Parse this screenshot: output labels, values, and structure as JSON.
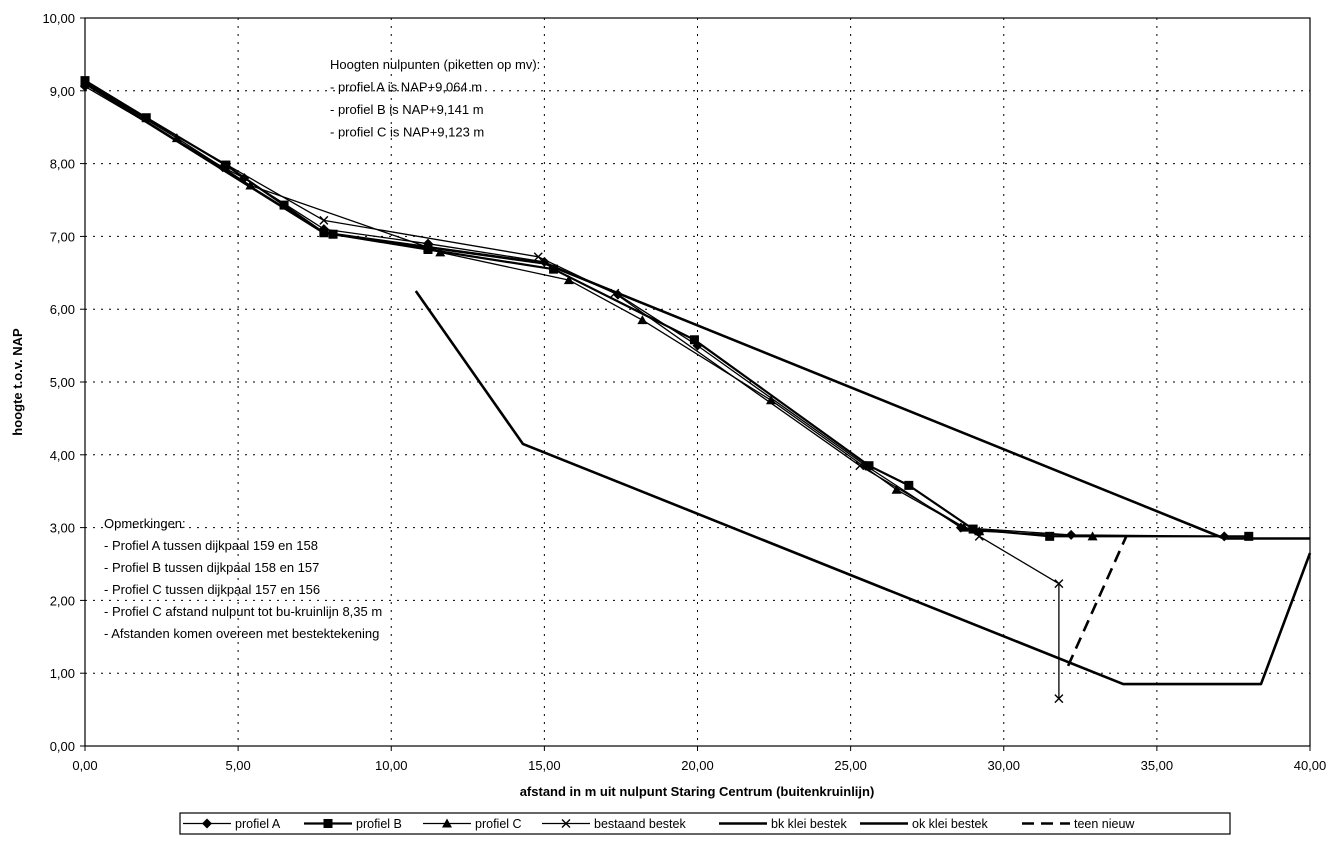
{
  "chart_data": {
    "type": "line",
    "title": "",
    "xlabel": "afstand in m uit nulpunt Staring Centrum (buitenkruinlijn)",
    "ylabel": "hoogte t.o.v. NAP",
    "xlim": [
      0,
      40
    ],
    "ylim": [
      0,
      10
    ],
    "x_ticks": [
      "0,00",
      "5,00",
      "10,00",
      "15,00",
      "20,00",
      "25,00",
      "30,00",
      "35,00",
      "40,00"
    ],
    "y_ticks": [
      "0,00",
      "1,00",
      "2,00",
      "3,00",
      "4,00",
      "5,00",
      "6,00",
      "7,00",
      "8,00",
      "9,00",
      "10,00"
    ],
    "grid": "dotted",
    "legend_position": "bottom",
    "series": [
      {
        "name": "profiel A",
        "marker": "diamond",
        "style": "solid-thin",
        "points": [
          [
            0,
            9.06
          ],
          [
            4.5,
            7.95
          ],
          [
            5.2,
            7.8
          ],
          [
            7.8,
            7.1
          ],
          [
            11.2,
            6.9
          ],
          [
            15.0,
            6.65
          ],
          [
            17.4,
            6.2
          ],
          [
            20.0,
            5.5
          ],
          [
            25.5,
            3.85
          ],
          [
            28.6,
            3.0
          ],
          [
            32.2,
            2.9
          ],
          [
            37.2,
            2.88
          ]
        ]
      },
      {
        "name": "profiel B",
        "marker": "square",
        "style": "solid",
        "points": [
          [
            0,
            9.14
          ],
          [
            2.0,
            8.63
          ],
          [
            4.6,
            7.98
          ],
          [
            6.5,
            7.43
          ],
          [
            7.8,
            7.05
          ],
          [
            8.1,
            7.03
          ],
          [
            11.2,
            6.82
          ],
          [
            15.3,
            6.55
          ],
          [
            19.9,
            5.58
          ],
          [
            25.6,
            3.85
          ],
          [
            26.9,
            3.58
          ],
          [
            29.0,
            2.98
          ],
          [
            31.5,
            2.88
          ],
          [
            38.0,
            2.88
          ]
        ]
      },
      {
        "name": "profiel C",
        "marker": "triangle",
        "style": "solid-thin",
        "points": [
          [
            0,
            9.12
          ],
          [
            3.0,
            8.35
          ],
          [
            5.4,
            7.7
          ],
          [
            11.2,
            6.85
          ],
          [
            11.6,
            6.78
          ],
          [
            15.8,
            6.4
          ],
          [
            18.2,
            5.85
          ],
          [
            22.4,
            4.75
          ],
          [
            26.5,
            3.52
          ],
          [
            28.7,
            3.0
          ],
          [
            29.2,
            2.95
          ],
          [
            32.9,
            2.88
          ]
        ]
      },
      {
        "name": "bestaand bestek",
        "marker": "x",
        "style": "solid-thin",
        "points": [
          [
            0,
            9.1
          ],
          [
            7.8,
            7.22
          ],
          [
            14.8,
            6.72
          ],
          [
            17.3,
            6.22
          ],
          [
            25.3,
            3.85
          ],
          [
            29.2,
            2.88
          ],
          [
            31.8,
            2.23
          ],
          [
            31.8,
            0.65
          ]
        ]
      },
      {
        "name": "bk klei bestek",
        "marker": "none",
        "style": "solid-thick",
        "points": [
          [
            0,
            9.1
          ],
          [
            7.8,
            7.05
          ],
          [
            15.0,
            6.63
          ],
          [
            17.4,
            6.22
          ],
          [
            37.2,
            2.85
          ],
          [
            40,
            2.85
          ]
        ]
      },
      {
        "name": "ok klei bestek",
        "marker": "none",
        "style": "solid-thick",
        "points": [
          [
            10.8,
            6.25
          ],
          [
            14.3,
            4.15
          ],
          [
            33.9,
            0.85
          ],
          [
            38.4,
            0.85
          ],
          [
            40,
            2.65
          ]
        ]
      },
      {
        "name": "teen nieuw",
        "marker": "none",
        "style": "dashed",
        "points": [
          [
            32.1,
            1.1
          ],
          [
            34.0,
            2.88
          ]
        ]
      }
    ],
    "annotations": {
      "top_note": [
        "Hoogten nulpunten (piketten op mv):",
        "- profiel A is NAP+9,064 m",
        "- profiel B is NAP+9,141 m",
        "- profiel C is NAP+9,123 m"
      ],
      "bottom_note": [
        "Opmerkingen:",
        "- Profiel A tussen dijkpaal 159 en 158",
        "- Profiel B tussen dijkpaal 158 en 157",
        "- Profiel C tussen dijkpaal 157 en 156",
        "- Profiel C afstand nulpunt tot bu-kruinlijn 8,35 m",
        "- Afstanden komen overeen met bestektekening"
      ]
    }
  }
}
